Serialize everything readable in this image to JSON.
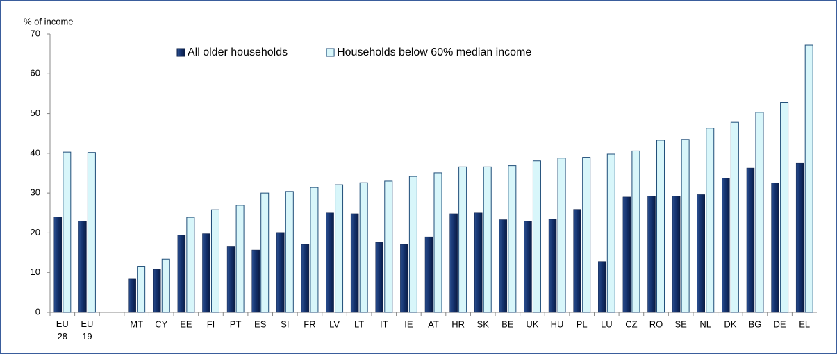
{
  "chart_data": {
    "type": "bar",
    "y_label": "% of income",
    "categories": [
      "EU 28",
      "EU 19",
      null,
      "MT",
      "CY",
      "EE",
      "FI",
      "PT",
      "ES",
      "SI",
      "FR",
      "LV",
      "LT",
      "IT",
      "IE",
      "AT",
      "HR",
      "SK",
      "BE",
      "UK",
      "HU",
      "PL",
      "LU",
      "CZ",
      "RO",
      "SE",
      "NL",
      "DK",
      "BG",
      "DE",
      "EL"
    ],
    "series": [
      {
        "name": "All older households",
        "color": "#13306b",
        "values": [
          24,
          23,
          null,
          8.4,
          10.8,
          19.4,
          19.8,
          16.5,
          15.7,
          20.1,
          17.1,
          25,
          24.8,
          17.6,
          17.1,
          19,
          24.8,
          25,
          23.3,
          22.9,
          23.4,
          25.9,
          12.8,
          29,
          29.2,
          29.2,
          29.6,
          33.8,
          36.3,
          32.6,
          37.5
        ]
      },
      {
        "name": "Households below 60% median income",
        "color": "#d8f6fa",
        "values": [
          40.3,
          40.2,
          null,
          11.6,
          13.4,
          23.9,
          25.8,
          26.9,
          30,
          30.4,
          31.4,
          32.1,
          32.6,
          33,
          34.2,
          35.1,
          36.6,
          36.6,
          36.9,
          38.1,
          38.8,
          39,
          39.8,
          40.6,
          43.3,
          43.5,
          46.3,
          47.8,
          50.3,
          52.8,
          67.2
        ]
      }
    ],
    "ylim": [
      0,
      70
    ],
    "yticks": [
      0,
      10,
      20,
      30,
      40,
      50,
      60,
      70
    ],
    "grid": false,
    "legend": "top"
  }
}
